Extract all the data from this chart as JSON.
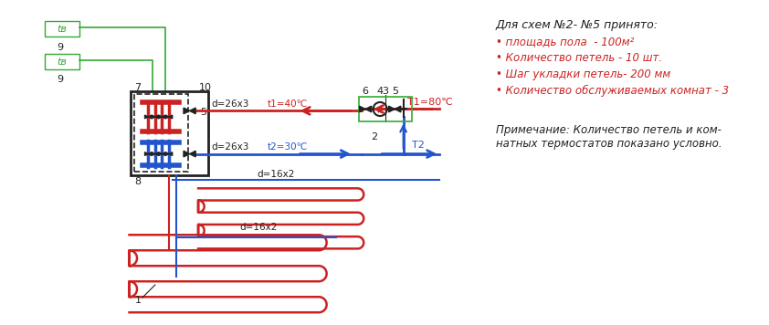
{
  "bg_color": "#ffffff",
  "red_color": "#cc2222",
  "blue_color": "#2255cc",
  "green_color": "#33aa33",
  "dark_color": "#222222",
  "legend_title": "Для схем №2- №5 принято:",
  "legend_items": [
    "• площадь пола  - 100м²",
    "• Количество петель - 10 шт.",
    "• Шаг укладки петель- 200 мм",
    "• Количество обслуживаемых комнат - 3"
  ],
  "note_line1": "Примечание: Количество петель и ком-",
  "note_line2": "натных термостатов показано условно."
}
